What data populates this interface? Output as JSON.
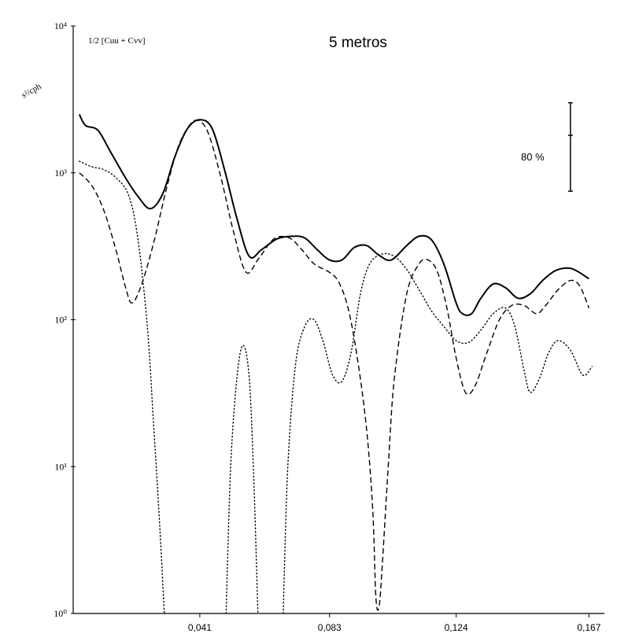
{
  "chart_data": {
    "type": "line",
    "title": "5 metros",
    "formula_label": "1/2 [Cuu + Cvv]",
    "ylabel": "s²/cph",
    "xlabel": "",
    "y_scale": "log",
    "xlim": [
      0,
      0.172
    ],
    "ylim": [
      1,
      10000
    ],
    "x_ticks": [
      {
        "value": 0.041,
        "label": "0,041"
      },
      {
        "value": 0.083,
        "label": "0,083"
      },
      {
        "value": 0.124,
        "label": "0,124"
      },
      {
        "value": 0.167,
        "label": "0,167"
      }
    ],
    "y_ticks": [
      {
        "value": 1,
        "label": "10⁰"
      },
      {
        "value": 10,
        "label": "10¹"
      },
      {
        "value": 100,
        "label": "10²"
      },
      {
        "value": 1000,
        "label": "10³"
      },
      {
        "value": 10000,
        "label": "10⁴"
      }
    ],
    "confidence_label": "80 %",
    "confidence_interval": {
      "x": 0.161,
      "low": 750,
      "center": 1800,
      "high": 3000
    },
    "series": [
      {
        "style": "solid",
        "points": [
          [
            0.002,
            2500
          ],
          [
            0.004,
            2100
          ],
          [
            0.008,
            1950
          ],
          [
            0.012,
            1400
          ],
          [
            0.017,
            920
          ],
          [
            0.021,
            690
          ],
          [
            0.025,
            570
          ],
          [
            0.029,
            720
          ],
          [
            0.033,
            1300
          ],
          [
            0.037,
            2000
          ],
          [
            0.041,
            2300
          ],
          [
            0.045,
            2000
          ],
          [
            0.049,
            1050
          ],
          [
            0.053,
            490
          ],
          [
            0.057,
            270
          ],
          [
            0.061,
            300
          ],
          [
            0.066,
            355
          ],
          [
            0.071,
            370
          ],
          [
            0.075,
            360
          ],
          [
            0.079,
            300
          ],
          [
            0.083,
            255
          ],
          [
            0.087,
            255
          ],
          [
            0.091,
            310
          ],
          [
            0.095,
            320
          ],
          [
            0.099,
            275
          ],
          [
            0.103,
            255
          ],
          [
            0.108,
            320
          ],
          [
            0.112,
            370
          ],
          [
            0.116,
            350
          ],
          [
            0.12,
            240
          ],
          [
            0.124,
            130
          ],
          [
            0.126,
            110
          ],
          [
            0.129,
            110
          ],
          [
            0.132,
            140
          ],
          [
            0.136,
            175
          ],
          [
            0.14,
            165
          ],
          [
            0.144,
            140
          ],
          [
            0.148,
            150
          ],
          [
            0.152,
            185
          ],
          [
            0.156,
            215
          ],
          [
            0.16,
            225
          ],
          [
            0.163,
            215
          ],
          [
            0.167,
            190
          ]
        ]
      },
      {
        "style": "dashed",
        "points": [
          [
            0.002,
            1000
          ],
          [
            0.006,
            820
          ],
          [
            0.01,
            550
          ],
          [
            0.014,
            290
          ],
          [
            0.017,
            165
          ],
          [
            0.019,
            130
          ],
          [
            0.022,
            170
          ],
          [
            0.026,
            330
          ],
          [
            0.03,
            750
          ],
          [
            0.034,
            1500
          ],
          [
            0.038,
            2150
          ],
          [
            0.041,
            2250
          ],
          [
            0.044,
            1800
          ],
          [
            0.048,
            900
          ],
          [
            0.052,
            390
          ],
          [
            0.056,
            210
          ],
          [
            0.06,
            260
          ],
          [
            0.065,
            355
          ],
          [
            0.07,
            360
          ],
          [
            0.074,
            300
          ],
          [
            0.078,
            240
          ],
          [
            0.083,
            210
          ],
          [
            0.086,
            180
          ],
          [
            0.089,
            120
          ],
          [
            0.092,
            55
          ],
          [
            0.095,
            18
          ],
          [
            0.097,
            5
          ],
          [
            0.098,
            1.3
          ],
          [
            0.099,
            1.1
          ],
          [
            0.1,
            2
          ],
          [
            0.102,
            10
          ],
          [
            0.104,
            40
          ],
          [
            0.108,
            150
          ],
          [
            0.112,
            240
          ],
          [
            0.115,
            255
          ],
          [
            0.118,
            210
          ],
          [
            0.121,
            120
          ],
          [
            0.124,
            55
          ],
          [
            0.127,
            32
          ],
          [
            0.13,
            35
          ],
          [
            0.134,
            60
          ],
          [
            0.138,
            100
          ],
          [
            0.142,
            125
          ],
          [
            0.146,
            125
          ],
          [
            0.15,
            110
          ],
          [
            0.153,
            125
          ],
          [
            0.157,
            160
          ],
          [
            0.161,
            185
          ],
          [
            0.164,
            170
          ],
          [
            0.167,
            120
          ]
        ]
      },
      {
        "style": "dotted",
        "segments": [
          [
            [
              0.002,
              1200
            ],
            [
              0.006,
              1100
            ],
            [
              0.01,
              1050
            ],
            [
              0.014,
              920
            ],
            [
              0.018,
              700
            ],
            [
              0.021,
              350
            ],
            [
              0.024,
              90
            ],
            [
              0.026,
              20
            ],
            [
              0.028,
              4
            ],
            [
              0.0295,
              1
            ]
          ],
          [
            [
              0.0495,
              1
            ],
            [
              0.051,
              10
            ],
            [
              0.053,
              40
            ],
            [
              0.055,
              67
            ],
            [
              0.057,
              40
            ],
            [
              0.0585,
              8
            ],
            [
              0.0598,
              1
            ]
          ],
          [
            [
              0.068,
              1
            ],
            [
              0.0695,
              10
            ],
            [
              0.072,
              50
            ],
            [
              0.075,
              90
            ],
            [
              0.078,
              100
            ],
            [
              0.081,
              70
            ],
            [
              0.084,
              42
            ],
            [
              0.087,
              38
            ],
            [
              0.09,
              60
            ],
            [
              0.093,
              150
            ],
            [
              0.096,
              240
            ],
            [
              0.1,
              280
            ],
            [
              0.104,
              270
            ],
            [
              0.108,
              220
            ],
            [
              0.112,
              160
            ],
            [
              0.116,
              115
            ],
            [
              0.12,
              90
            ],
            [
              0.124,
              72
            ],
            [
              0.128,
              70
            ],
            [
              0.132,
              85
            ],
            [
              0.136,
              110
            ],
            [
              0.14,
              120
            ],
            [
              0.143,
              90
            ],
            [
              0.146,
              45
            ],
            [
              0.148,
              32
            ],
            [
              0.151,
              40
            ],
            [
              0.154,
              60
            ],
            [
              0.157,
              72
            ],
            [
              0.161,
              62
            ],
            [
              0.165,
              42
            ],
            [
              0.168,
              48
            ]
          ]
        ]
      }
    ]
  }
}
